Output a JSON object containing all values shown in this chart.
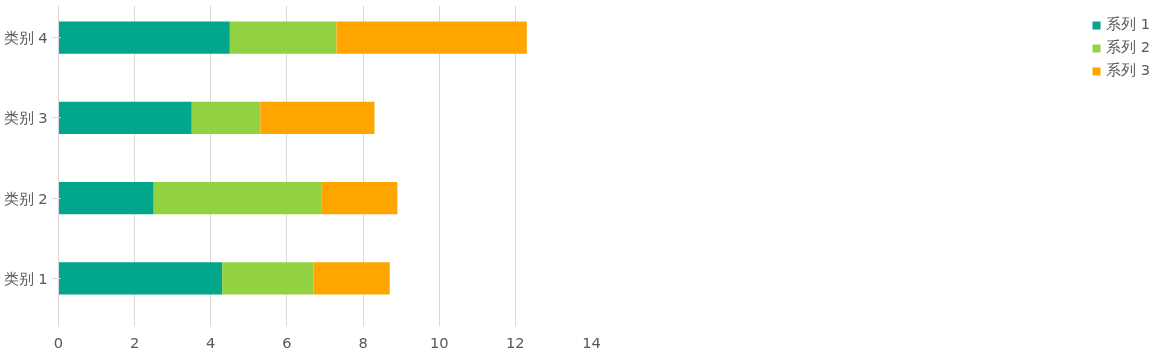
{
  "chart_data": {
    "type": "bar",
    "orientation": "horizontal",
    "stacked": true,
    "categories": [
      "类别 4",
      "类别 3",
      "类别 2",
      "类别 1"
    ],
    "series": [
      {
        "name": "系列 1",
        "color": "#02a68a",
        "values": [
          4.5,
          3.5,
          2.5,
          4.3
        ]
      },
      {
        "name": "系列 2",
        "color": "#92d142",
        "values": [
          2.8,
          1.8,
          4.4,
          2.4
        ]
      },
      {
        "name": "系列 3",
        "color": "#fea500",
        "values": [
          5,
          3,
          2,
          2
        ]
      }
    ],
    "xlim": [
      0,
      14
    ],
    "xticks": [
      0,
      2,
      4,
      6,
      8,
      10,
      12,
      14
    ],
    "grid": "x",
    "legend": "right"
  }
}
